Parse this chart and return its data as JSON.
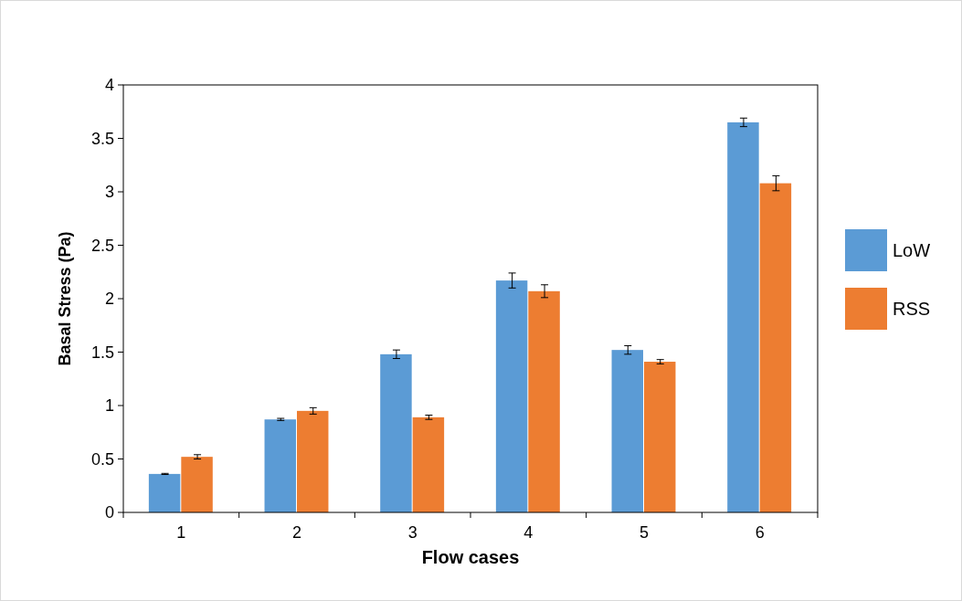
{
  "chart_data": {
    "type": "bar",
    "xlabel": "Flow cases",
    "ylabel": "Basal Stress (Pa)",
    "categories": [
      "1",
      "2",
      "3",
      "4",
      "5",
      "6"
    ],
    "series": [
      {
        "name": "LoW",
        "color": "#5b9bd5",
        "values": [
          0.36,
          0.87,
          1.48,
          2.17,
          1.52,
          3.65
        ],
        "errors": [
          0.005,
          0.01,
          0.04,
          0.07,
          0.04,
          0.04
        ]
      },
      {
        "name": "RSS",
        "color": "#ed7d31",
        "values": [
          0.52,
          0.95,
          0.89,
          2.07,
          1.41,
          3.08
        ],
        "errors": [
          0.02,
          0.03,
          0.02,
          0.06,
          0.02,
          0.07
        ]
      }
    ],
    "ylim": [
      0,
      4
    ],
    "yticks": [
      0,
      0.5,
      1,
      1.5,
      2,
      2.5,
      3,
      3.5,
      4
    ],
    "grid": false,
    "legend": "right"
  }
}
